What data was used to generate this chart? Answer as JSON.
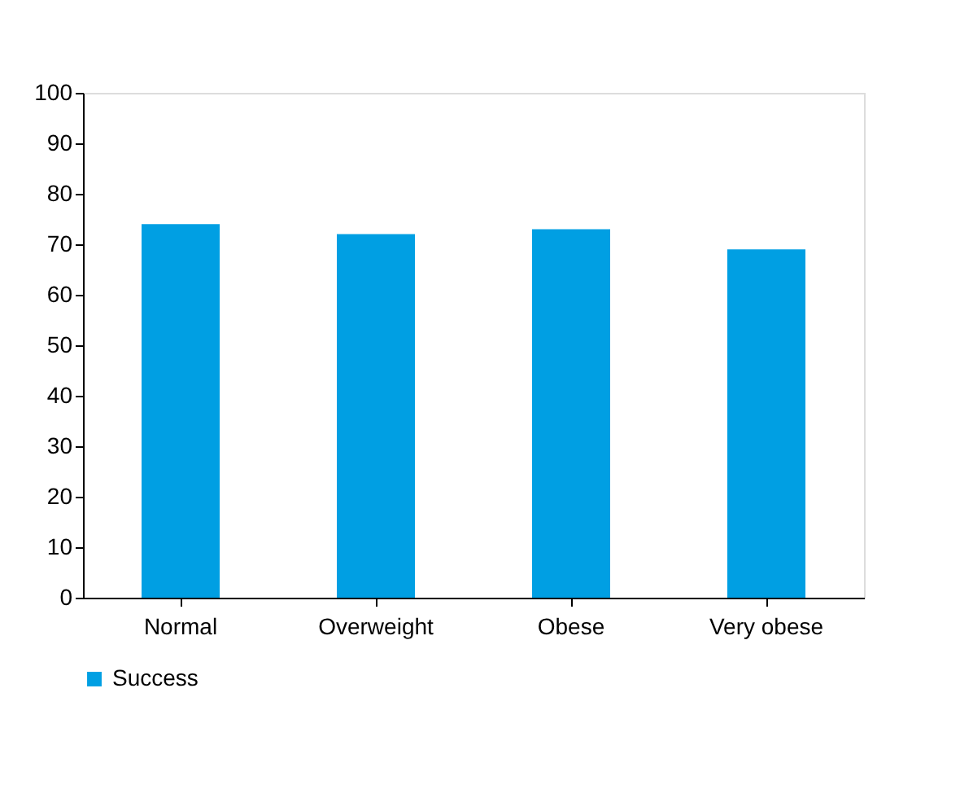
{
  "chart_data": {
    "type": "bar",
    "categories": [
      "Normal",
      "Overweight",
      "Obese",
      "Very obese"
    ],
    "series": [
      {
        "name": "Success",
        "color": "#009fe3",
        "values": [
          74,
          72,
          73,
          69
        ]
      }
    ],
    "ylim": [
      0,
      100
    ],
    "yticks": [
      0,
      10,
      20,
      30,
      40,
      50,
      60,
      70,
      80,
      90,
      100
    ],
    "grid": false,
    "legend": "bottom"
  }
}
